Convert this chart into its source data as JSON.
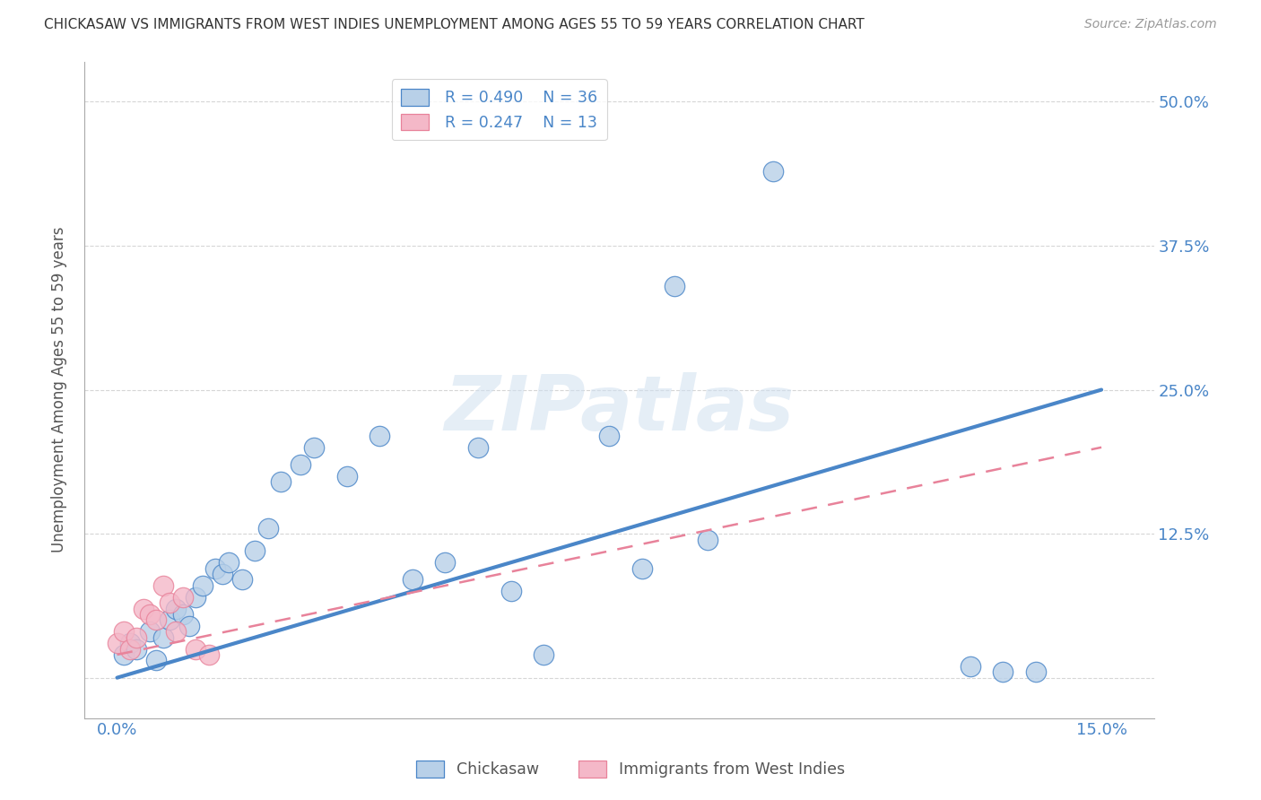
{
  "title": "CHICKASAW VS IMMIGRANTS FROM WEST INDIES UNEMPLOYMENT AMONG AGES 55 TO 59 YEARS CORRELATION CHART",
  "source": "Source: ZipAtlas.com",
  "ylabel_label": "Unemployment Among Ages 55 to 59 years",
  "legend_entry1": {
    "color": "#a8c4e0",
    "R": "0.490",
    "N": "36",
    "label": "Chickasaw"
  },
  "legend_entry2": {
    "color": "#f4b8c8",
    "R": "0.247",
    "N": "13",
    "label": "Immigrants from West Indies"
  },
  "chickasaw_scatter_x": [
    0.001,
    0.002,
    0.003,
    0.005,
    0.006,
    0.007,
    0.008,
    0.009,
    0.01,
    0.011,
    0.012,
    0.013,
    0.015,
    0.016,
    0.017,
    0.019,
    0.021,
    0.023,
    0.025,
    0.028,
    0.03,
    0.035,
    0.04,
    0.045,
    0.05,
    0.055,
    0.06,
    0.065,
    0.075,
    0.08,
    0.085,
    0.09,
    0.1,
    0.13,
    0.135,
    0.14
  ],
  "chickasaw_scatter_y": [
    0.02,
    0.03,
    0.025,
    0.04,
    0.015,
    0.035,
    0.05,
    0.06,
    0.055,
    0.045,
    0.07,
    0.08,
    0.095,
    0.09,
    0.1,
    0.085,
    0.11,
    0.13,
    0.17,
    0.185,
    0.2,
    0.175,
    0.21,
    0.085,
    0.1,
    0.2,
    0.075,
    0.02,
    0.21,
    0.095,
    0.34,
    0.12,
    0.44,
    0.01,
    0.005,
    0.005
  ],
  "west_indies_scatter_x": [
    0.0,
    0.001,
    0.002,
    0.003,
    0.004,
    0.005,
    0.006,
    0.007,
    0.008,
    0.009,
    0.01,
    0.012,
    0.014
  ],
  "west_indies_scatter_y": [
    0.03,
    0.04,
    0.025,
    0.035,
    0.06,
    0.055,
    0.05,
    0.08,
    0.065,
    0.04,
    0.07,
    0.025,
    0.02
  ],
  "chickasaw_line_x": [
    0.0,
    0.15
  ],
  "chickasaw_line_y": [
    0.0,
    0.25
  ],
  "west_indies_line_x": [
    0.0,
    0.15
  ],
  "west_indies_line_y": [
    0.02,
    0.2
  ],
  "chickasaw_line_color": "#4a86c8",
  "west_indies_line_color": "#e8829a",
  "watermark_text": "ZIPatlas",
  "background_color": "#ffffff",
  "scatter_blue": "#b8d0e8",
  "scatter_pink": "#f4b8c8",
  "grid_color": "#cccccc",
  "ytick_vals": [
    0.0,
    0.125,
    0.25,
    0.375,
    0.5
  ],
  "ytick_labels": [
    "",
    "12.5%",
    "25.0%",
    "37.5%",
    "50.0%"
  ],
  "xtick_vals": [
    0.0,
    0.05,
    0.1,
    0.15
  ],
  "xtick_labels": [
    "0.0%",
    "",
    "",
    "15.0%"
  ],
  "xlim": [
    -0.005,
    0.158
  ],
  "ylim": [
    -0.035,
    0.535
  ]
}
